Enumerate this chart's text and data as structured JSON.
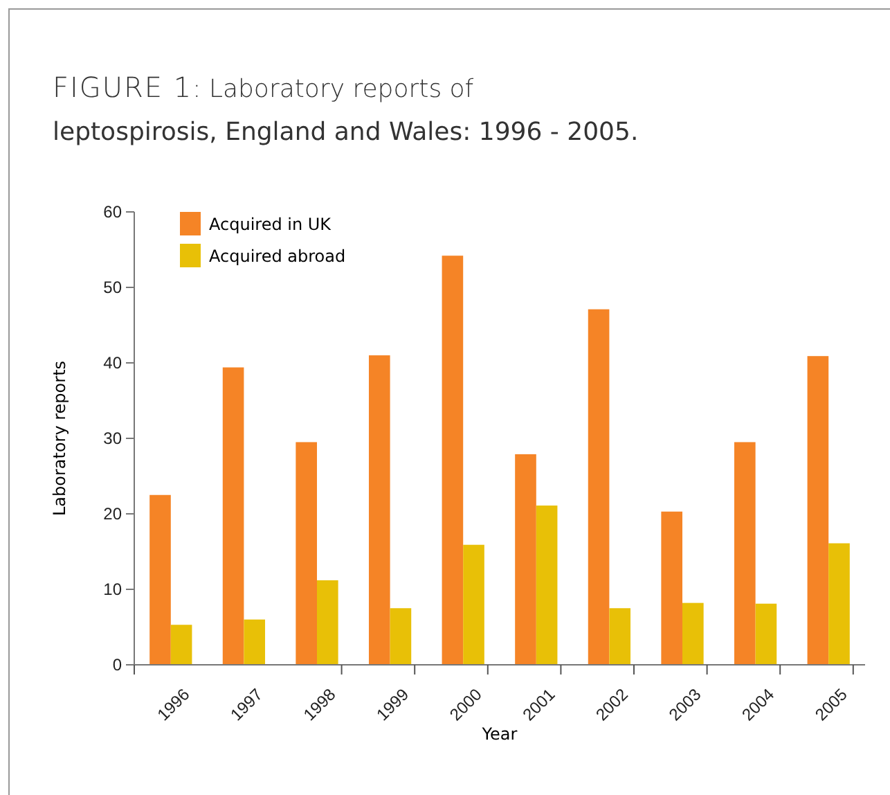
{
  "chart_data": {
    "type": "bar",
    "title": "FIGURE 1: Laboratory reports of leptospirosis, England and Wales: 1996 - 2005.",
    "xlabel": "Year",
    "ylabel": "Laboratory reports",
    "categories": [
      "1996",
      "1997",
      "1998",
      "1999",
      "2000",
      "2001",
      "2002",
      "2003",
      "2004",
      "2005"
    ],
    "series": [
      {
        "name": "Acquired in UK",
        "color": "#f58426",
        "values": [
          22.5,
          39.4,
          29.5,
          41,
          54.2,
          27.9,
          47.1,
          20.3,
          29.5,
          40.9
        ]
      },
      {
        "name": "Acquired abroad",
        "color": "#e8c007",
        "values": [
          5.3,
          6,
          11.2,
          7.5,
          15.9,
          21.1,
          7.5,
          8.2,
          8.1,
          16.1
        ]
      }
    ],
    "ylim": [
      0,
      60
    ],
    "yticks": [
      0,
      10,
      20,
      30,
      40,
      50,
      60
    ],
    "grid": false,
    "legend": "top left"
  }
}
